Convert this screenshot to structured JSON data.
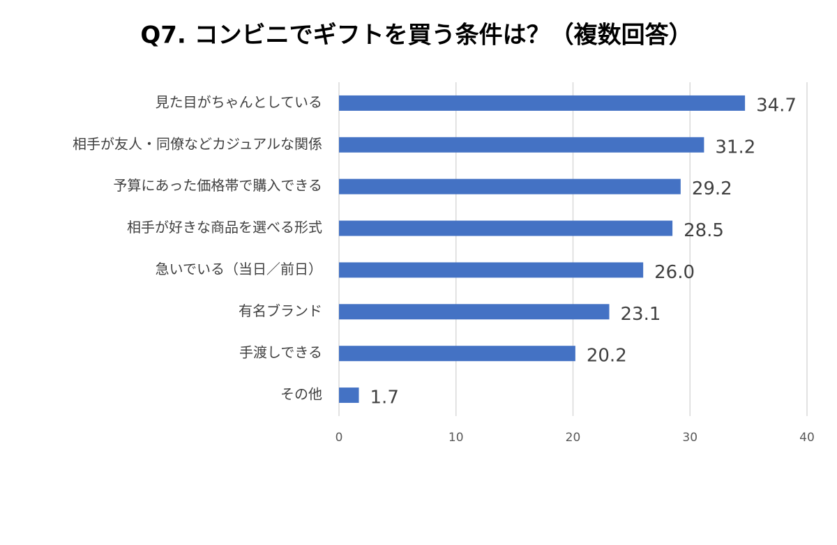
{
  "chart_data": {
    "type": "bar",
    "orientation": "horizontal",
    "title": "Q7. コンビニでギフトを買う条件は？（複数回答）",
    "categories": [
      "見た目がちゃんとしている",
      "相手が友人・同僚などカジュアルな関係",
      "予算にあった価格帯で購入できる",
      "相手が好きな商品を選べる形式",
      "急いでいる（当日／前日）",
      "有名ブランド",
      "手渡しできる",
      "その他"
    ],
    "values": [
      34.7,
      31.2,
      29.2,
      28.5,
      26.0,
      23.1,
      20.2,
      1.7
    ],
    "value_labels": [
      "34.7",
      "31.2",
      "29.2",
      "28.5",
      "26.0",
      "23.1",
      "20.2",
      "1.7"
    ],
    "color": "#4472c4",
    "xlim": [
      0,
      40
    ],
    "xticks": [
      0,
      10,
      20,
      30,
      40
    ],
    "grid": true
  }
}
